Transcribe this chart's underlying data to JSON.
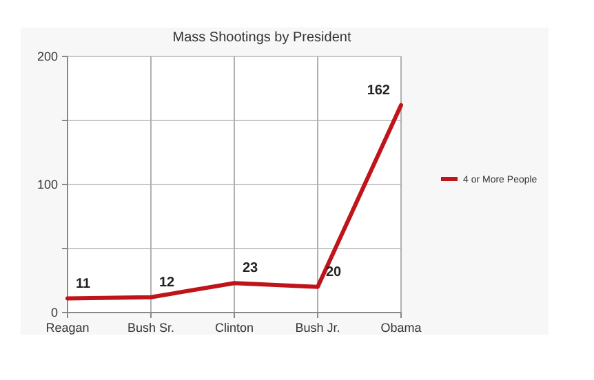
{
  "chart_data": {
    "type": "line",
    "title": "Mass Shootings by President",
    "categories": [
      "Reagan",
      "Bush Sr.",
      "Clinton",
      "Bush Jr.",
      "Obama"
    ],
    "series": [
      {
        "name": "4 or More People",
        "color": "#c0141b",
        "values": [
          11,
          12,
          23,
          20,
          162
        ]
      }
    ],
    "ylim": [
      0,
      200
    ],
    "yticks": [
      0,
      {
        "value": 50,
        "label": null
      },
      100,
      {
        "value": 150,
        "label": null
      },
      200
    ],
    "grid": true,
    "legend": "right",
    "data_labels": true,
    "marker": "none",
    "line_style": "solid"
  }
}
